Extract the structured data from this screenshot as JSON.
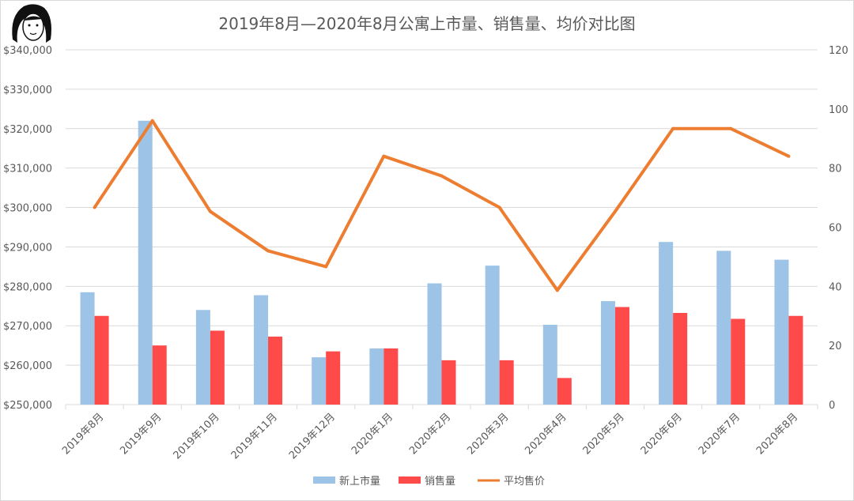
{
  "chart_data": {
    "type": "bar",
    "title": "2019年8月—2020年8月公寓上市量、销售量、均价对比图",
    "categories": [
      "2019年8月",
      "2019年9月",
      "2019年10月",
      "2019年11月",
      "2019年12月",
      "2020年1月",
      "2020年2月",
      "2020年3月",
      "2020年4月",
      "2020年5月",
      "2020年6月",
      "2020年7月",
      "2020年8月"
    ],
    "series": [
      {
        "name": "新上市量",
        "type": "bar",
        "axis": "right",
        "color": "#9dc3e6",
        "values": [
          38,
          96,
          32,
          37,
          16,
          19,
          41,
          47,
          27,
          35,
          55,
          52,
          49
        ]
      },
      {
        "name": "销售量",
        "type": "bar",
        "axis": "right",
        "color": "#ff4a4a",
        "values": [
          30,
          20,
          25,
          23,
          18,
          19,
          15,
          15,
          9,
          33,
          31,
          29,
          30
        ]
      },
      {
        "name": "平均售价",
        "type": "line",
        "axis": "left",
        "color": "#ed7d31",
        "values": [
          300000,
          322000,
          299000,
          289000,
          285000,
          313000,
          308000,
          300000,
          279000,
          299000,
          320000,
          320000,
          313000
        ]
      }
    ],
    "y_left": {
      "min": 250000,
      "max": 340000,
      "step": 10000,
      "ticks": [
        "$250,000",
        "$260,000",
        "$270,000",
        "$280,000",
        "$290,000",
        "$300,000",
        "$310,000",
        "$320,000",
        "$330,000",
        "$340,000"
      ]
    },
    "y_right": {
      "min": 0,
      "max": 120,
      "step": 20,
      "ticks": [
        "0",
        "20",
        "40",
        "60",
        "80",
        "100",
        "120"
      ]
    },
    "grid": true,
    "legend": "bottom-center"
  }
}
